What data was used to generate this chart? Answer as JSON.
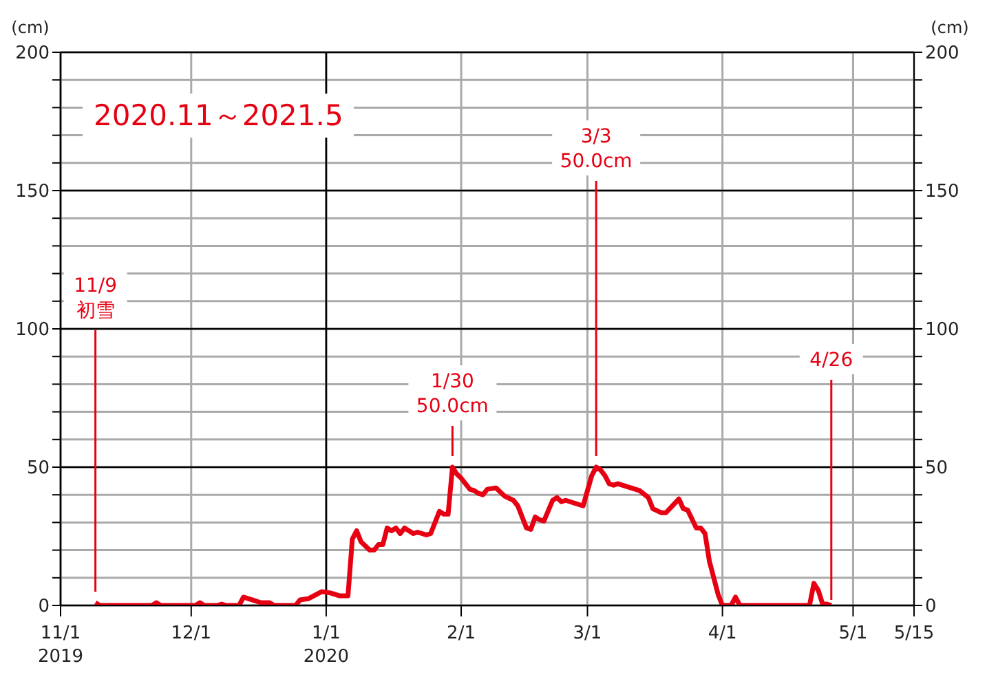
{
  "chart_data": {
    "type": "line",
    "title": "2020.11～2021.5",
    "ylabel": "(cm)",
    "y2label": "(cm)",
    "x": [
      "2019-11-09",
      "2019-11-10",
      "2019-11-22",
      "2019-11-23",
      "2019-11-24",
      "2019-12-02",
      "2019-12-03",
      "2019-12-04",
      "2019-12-07",
      "2019-12-08",
      "2019-12-09",
      "2019-12-12",
      "2019-12-13",
      "2019-12-15",
      "2019-12-17",
      "2019-12-19",
      "2019-12-20",
      "2019-12-25",
      "2019-12-26",
      "2019-12-28",
      "2019-12-31",
      "2020-01-02",
      "2020-01-04",
      "2020-01-06",
      "2020-01-07",
      "2020-01-08",
      "2020-01-09",
      "2020-01-11",
      "2020-01-12",
      "2020-01-13",
      "2020-01-14",
      "2020-01-15",
      "2020-01-16",
      "2020-01-17",
      "2020-01-18",
      "2020-01-19",
      "2020-01-20",
      "2020-01-21",
      "2020-01-22",
      "2020-01-24",
      "2020-01-25",
      "2020-01-26",
      "2020-01-27",
      "2020-01-28",
      "2020-01-29",
      "2020-01-30",
      "2020-01-31",
      "2020-02-01",
      "2020-02-02",
      "2020-02-03",
      "2020-02-04",
      "2020-02-05",
      "2020-02-06",
      "2020-02-07",
      "2020-02-09",
      "2020-02-10",
      "2020-02-11",
      "2020-02-13",
      "2020-02-14",
      "2020-02-16",
      "2020-02-17",
      "2020-02-18",
      "2020-02-19",
      "2020-02-20",
      "2020-02-22",
      "2020-02-23",
      "2020-02-24",
      "2020-02-25",
      "2020-02-27",
      "2020-02-29",
      "2020-03-02",
      "2020-03-03",
      "2020-03-04",
      "2020-03-05",
      "2020-03-06",
      "2020-03-07",
      "2020-03-08",
      "2020-03-10",
      "2020-03-11",
      "2020-03-13",
      "2020-03-15",
      "2020-03-16",
      "2020-03-18",
      "2020-03-19",
      "2020-03-22",
      "2020-03-23",
      "2020-03-24",
      "2020-03-26",
      "2020-03-27",
      "2020-03-28",
      "2020-03-29",
      "2020-03-31",
      "2020-04-01",
      "2020-04-03",
      "2020-04-04",
      "2020-04-05",
      "2020-04-21",
      "2020-04-22",
      "2020-04-23",
      "2020-04-24",
      "2020-04-25",
      "2020-04-26"
    ],
    "series": [
      {
        "color": "#e60012",
        "values": [
          1,
          0,
          0,
          1,
          0,
          0,
          1,
          0,
          0,
          0.5,
          0,
          0,
          3,
          2,
          1,
          1,
          0,
          0,
          2,
          2.5,
          5,
          4.5,
          3.5,
          3.5,
          24,
          27,
          23,
          20,
          20,
          22,
          22,
          28,
          27,
          28,
          26,
          28,
          27,
          26,
          26.5,
          25.5,
          26,
          30,
          34,
          33,
          33,
          50,
          47.5,
          46,
          44,
          42,
          41.5,
          40.5,
          40,
          42,
          42.5,
          41,
          39.5,
          38,
          36,
          28,
          27.5,
          32,
          31,
          30.5,
          38,
          39,
          37.5,
          38,
          37,
          36,
          47,
          50,
          49,
          47,
          44,
          43.5,
          44,
          43,
          42.5,
          41.5,
          39,
          35,
          33.5,
          33.5,
          38.5,
          35,
          34.5,
          28,
          28,
          26,
          16,
          4,
          0,
          0,
          3,
          0,
          0,
          8,
          5.5,
          0.5,
          0.5,
          0
        ]
      }
    ],
    "xlim": [
      "2019-11-01",
      "2020-05-15"
    ],
    "xticks": [
      {
        "value": "2019-11-01",
        "label": "11/1\n2019"
      },
      {
        "value": "2019-12-01",
        "label": "12/1"
      },
      {
        "value": "2020-01-01",
        "label": "1/1\n2020"
      },
      {
        "value": "2020-02-01",
        "label": "2/1"
      },
      {
        "value": "2020-03-01",
        "label": "3/1"
      },
      {
        "value": "2020-04-01",
        "label": "4/1"
      },
      {
        "value": "2020-05-01",
        "label": "5/1"
      },
      {
        "value": "2020-05-15",
        "label": "5/15"
      }
    ],
    "ylim": [
      0,
      200
    ],
    "yticks": [
      0,
      {
        "value": 10,
        "label": null
      },
      {
        "value": 20,
        "label": null
      },
      {
        "value": 30,
        "label": null
      },
      {
        "value": 40,
        "label": null
      },
      50,
      {
        "value": 60,
        "label": null
      },
      {
        "value": 70,
        "label": null
      },
      {
        "value": 80,
        "label": null
      },
      {
        "value": 90,
        "label": null
      },
      100,
      {
        "value": 110,
        "label": null
      },
      {
        "value": 120,
        "label": null
      },
      {
        "value": 130,
        "label": null
      },
      {
        "value": 140,
        "label": null
      },
      150,
      {
        "value": 160,
        "label": null
      },
      {
        "value": 170,
        "label": null
      },
      {
        "value": 180,
        "label": null
      },
      {
        "value": 190,
        "label": null
      },
      200
    ],
    "y2lim": [
      0,
      200
    ],
    "y2ticks": [
      0,
      {
        "value": 10,
        "label": null
      },
      {
        "value": 20,
        "label": null
      },
      {
        "value": 30,
        "label": null
      },
      {
        "value": 40,
        "label": null
      },
      50,
      {
        "value": 60,
        "label": null
      },
      {
        "value": 70,
        "label": null
      },
      {
        "value": 80,
        "label": null
      },
      {
        "value": 90,
        "label": null
      },
      100,
      {
        "value": 110,
        "label": null
      },
      {
        "value": 120,
        "label": null
      },
      {
        "value": 130,
        "label": null
      },
      {
        "value": 140,
        "label": null
      },
      150,
      {
        "value": 160,
        "label": null
      },
      {
        "value": 170,
        "label": null
      },
      {
        "value": 180,
        "label": null
      },
      {
        "value": 190,
        "label": null
      },
      200
    ],
    "grid": true,
    "marker": "none",
    "line_style": "solid",
    "annotations": [
      {
        "text": "11/9\n初雪",
        "x": "2019-11-09",
        "y": 1
      },
      {
        "text": "1/30\n50.0cm",
        "x": "2020-01-30",
        "y": 50
      },
      {
        "text": "3/3\n50.0cm",
        "x": "2020-03-03",
        "y": 50
      },
      {
        "text": "4/26",
        "x": "2020-04-26",
        "y": 0
      }
    ]
  }
}
